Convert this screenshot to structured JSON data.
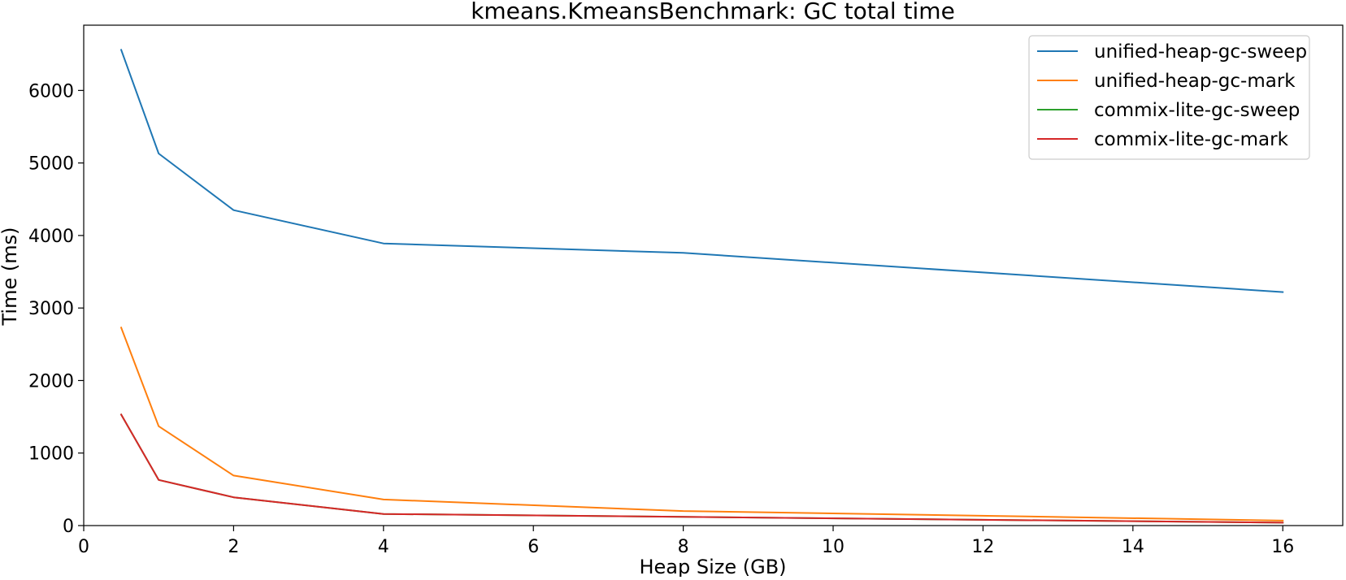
{
  "chart_data": {
    "type": "line",
    "title": "kmeans.KmeansBenchmark: GC total time",
    "xlabel": "Heap Size (GB)",
    "ylabel": "Time (ms)",
    "xlim": [
      0,
      16.8
    ],
    "ylim": [
      0,
      6900
    ],
    "x_ticks": [
      0,
      2,
      4,
      6,
      8,
      10,
      12,
      14,
      16
    ],
    "y_ticks": [
      0,
      1000,
      2000,
      3000,
      4000,
      5000,
      6000
    ],
    "grid": false,
    "legend_position": "top-right",
    "x": [
      0.5,
      1,
      2,
      4,
      8,
      16
    ],
    "series": [
      {
        "name": "unified-heap-gc-sweep",
        "color": "#1f77b4",
        "values": [
          6560,
          5130,
          4350,
          3890,
          3760,
          3220
        ]
      },
      {
        "name": "unified-heap-gc-mark",
        "color": "#ff7f0e",
        "values": [
          2730,
          1370,
          690,
          360,
          200,
          70
        ]
      },
      {
        "name": "commix-lite-gc-sweep",
        "color": "#2ca02c",
        "values": [
          1530,
          630,
          390,
          160,
          120,
          40
        ]
      },
      {
        "name": "commix-lite-gc-mark",
        "color": "#d62728",
        "values": [
          1530,
          630,
          390,
          160,
          120,
          40
        ]
      }
    ]
  }
}
